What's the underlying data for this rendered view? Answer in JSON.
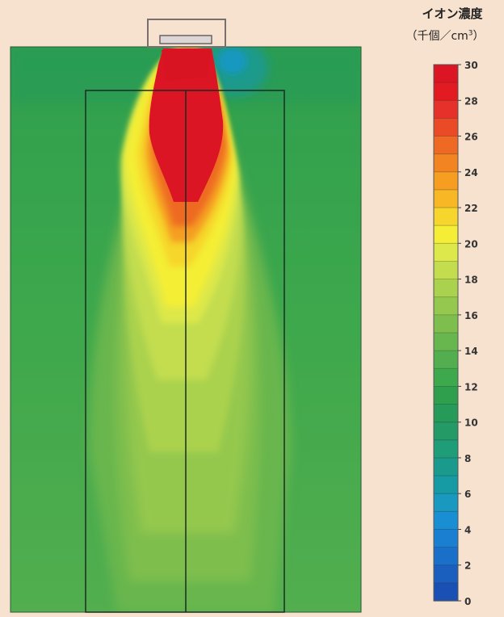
{
  "chart_data": {
    "type": "heatmap",
    "title": "",
    "colorbar": {
      "title": "イオン濃度",
      "unit_open": "（千個／cm",
      "unit_sup": "3",
      "unit_close": "）",
      "min": 0,
      "max": 30,
      "step": 1,
      "tick_labels": [
        "30",
        "28",
        "26",
        "24",
        "22",
        "20",
        "18",
        "16",
        "14",
        "12",
        "10",
        "8",
        "6",
        "4",
        "2",
        "0"
      ],
      "colors_top_to_bottom": [
        "#dc1524",
        "#e21a22",
        "#e6302a",
        "#ea4a26",
        "#ee6a24",
        "#f28422",
        "#f59e22",
        "#f8b826",
        "#f6d62c",
        "#f4ee36",
        "#dde84a",
        "#c3dd4f",
        "#abd24e",
        "#94c84e",
        "#7ebe4e",
        "#68b64e",
        "#52ae4e",
        "#3ea84c",
        "#2f9f4e",
        "#269a58",
        "#249a66",
        "#1f9c78",
        "#1a9a8c",
        "#169aa4",
        "#1998c0",
        "#1a8ed2",
        "#1a7fd0",
        "#1a6fc8",
        "#1a5fbe",
        "#1a50b4"
      ]
    },
    "field_description": "Ion concentration field below a ceiling-mounted ion generator: maximum (30) directly beneath the outlet, decreasing downward and outward to about 14 near the walls; low values (about 6–8) just to the right of the outlet."
  }
}
